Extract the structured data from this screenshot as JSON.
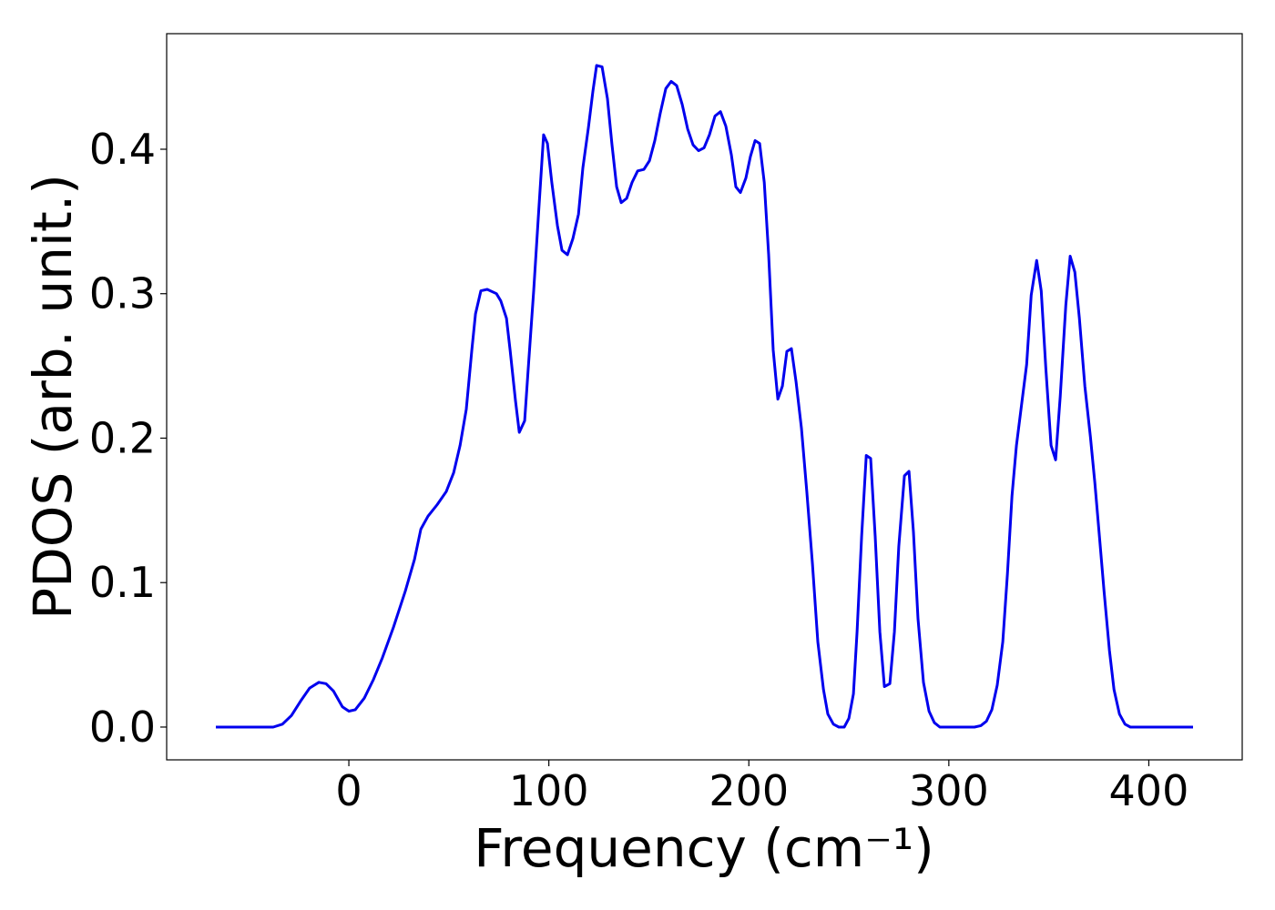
{
  "chart_data": {
    "type": "line",
    "xlabel": "Frequency (cm⁻¹)",
    "ylabel": "PDOS (arb. unit.)",
    "xlim": [
      -91.1,
      446.7
    ],
    "ylim": [
      -0.0227,
      0.48
    ],
    "xticks": [
      0,
      100,
      200,
      300,
      400
    ],
    "yticks": [
      {
        "value": 0,
        "label": "0.0"
      },
      0.1,
      0.2,
      0.3,
      0.4
    ],
    "x": [
      -66.5,
      -37.8,
      -33.2,
      -28.7,
      -24.1,
      -19.6,
      -15.0,
      -11.4,
      -7.7,
      -3.2,
      0,
      3.2,
      7.7,
      12.3,
      16.8,
      22.3,
      28.2,
      32.8,
      36.0,
      39.6,
      44.2,
      48.7,
      52.4,
      55.6,
      58.7,
      61.5,
      63.3,
      66.0,
      69.2,
      73.8,
      76.0,
      78.8,
      80.6,
      83.3,
      85.2,
      87.9,
      89.7,
      92.4,
      94.7,
      97.4,
      99.3,
      101.5,
      104.3,
      106.6,
      109.3,
      112.0,
      114.8,
      117.0,
      119.8,
      122.0,
      123.9,
      126.6,
      129.3,
      131.6,
      133.9,
      136.2,
      138.9,
      141.6,
      144.4,
      147.5,
      150.3,
      153.0,
      155.7,
      158.5,
      161.2,
      163.9,
      166.7,
      169.4,
      172.1,
      174.9,
      177.6,
      180.3,
      183.1,
      185.8,
      188.5,
      191.3,
      193.5,
      195.8,
      198.5,
      200.8,
      203.1,
      205.4,
      207.7,
      209.9,
      212.2,
      214.5,
      216.8,
      219.0,
      221.3,
      223.6,
      226.3,
      229.0,
      231.8,
      234.5,
      237.3,
      239.5,
      242.3,
      245.0,
      247.7,
      250.0,
      252.3,
      254.1,
      256.4,
      258.7,
      260.9,
      263.2,
      265.5,
      267.8,
      270.5,
      272.8,
      275.0,
      277.8,
      280.1,
      282.3,
      284.6,
      287.3,
      290.1,
      292.8,
      295.5,
      312.8,
      316.0,
      318.8,
      321.5,
      324.2,
      327.0,
      329.3,
      331.6,
      333.8,
      336.1,
      338.9,
      341.2,
      343.9,
      346.2,
      348.5,
      351.1,
      353.4,
      355.7,
      358.5,
      360.7,
      363.0,
      365.3,
      368.0,
      370.8,
      373.0,
      375.3,
      377.6,
      380.3,
      382.6,
      385.3,
      388.1,
      390.8,
      422.1
    ],
    "series": [
      {
        "color": "#0000ee",
        "values": [
          0,
          0,
          0.002,
          0.008,
          0.018,
          0.027,
          0.031,
          0.03,
          0.025,
          0.014,
          0.011,
          0.012,
          0.02,
          0.033,
          0.048,
          0.069,
          0.094,
          0.116,
          0.137,
          0.146,
          0.154,
          0.163,
          0.176,
          0.195,
          0.22,
          0.261,
          0.286,
          0.302,
          0.303,
          0.3,
          0.295,
          0.283,
          0.261,
          0.226,
          0.204,
          0.212,
          0.248,
          0.302,
          0.352,
          0.41,
          0.404,
          0.377,
          0.347,
          0.33,
          0.327,
          0.338,
          0.355,
          0.387,
          0.415,
          0.44,
          0.458,
          0.457,
          0.435,
          0.403,
          0.374,
          0.363,
          0.366,
          0.377,
          0.385,
          0.386,
          0.392,
          0.406,
          0.425,
          0.442,
          0.447,
          0.444,
          0.431,
          0.414,
          0.403,
          0.399,
          0.401,
          0.41,
          0.423,
          0.426,
          0.416,
          0.396,
          0.374,
          0.37,
          0.38,
          0.395,
          0.406,
          0.404,
          0.377,
          0.327,
          0.261,
          0.227,
          0.236,
          0.26,
          0.262,
          0.239,
          0.207,
          0.163,
          0.113,
          0.059,
          0.026,
          0.009,
          0.002,
          0,
          0,
          0.006,
          0.023,
          0.066,
          0.132,
          0.188,
          0.186,
          0.132,
          0.066,
          0.028,
          0.03,
          0.066,
          0.125,
          0.174,
          0.177,
          0.135,
          0.075,
          0.031,
          0.011,
          0.003,
          0,
          0,
          0.001,
          0.004,
          0.012,
          0.029,
          0.059,
          0.106,
          0.16,
          0.195,
          0.22,
          0.251,
          0.299,
          0.323,
          0.302,
          0.248,
          0.195,
          0.185,
          0.229,
          0.292,
          0.326,
          0.315,
          0.283,
          0.236,
          0.201,
          0.169,
          0.132,
          0.094,
          0.053,
          0.026,
          0.009,
          0.002,
          0,
          0
        ]
      }
    ]
  }
}
